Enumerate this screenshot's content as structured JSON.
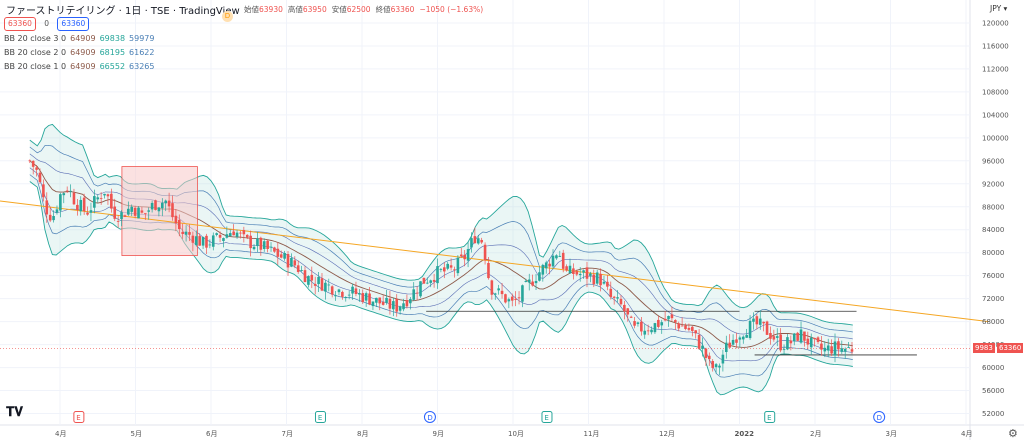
{
  "header": {
    "title": "ファーストリテイリング · 1日 · TSE · TradingView",
    "status_dot": "D",
    "ohlc": [
      {
        "label": "始値",
        "value": "63930"
      },
      {
        "label": "高値",
        "value": "63950"
      },
      {
        "label": "安値",
        "value": "62500"
      },
      {
        "label": "終値",
        "value": "63360"
      },
      {
        "label": "",
        "value": "−1050 (−1.63%)"
      }
    ],
    "buy_price": "63360",
    "spread": "0",
    "sell_price": "63360"
  },
  "indicators": [
    {
      "name": "BB 20 close 3 0",
      "basis": "64909",
      "upper": "69838",
      "lower": "59979"
    },
    {
      "name": "BB 20 close 2 0",
      "basis": "64909",
      "upper": "68195",
      "lower": "61622"
    },
    {
      "name": "BB 20 close 1 0",
      "basis": "64909",
      "upper": "66552",
      "lower": "63265"
    }
  ],
  "currency": "JPY",
  "price_tags": {
    "symbol": "9983",
    "last": "63360"
  },
  "colors": {
    "up": "#26a69a",
    "down": "#ef5350",
    "band3": "#26a69a",
    "band2": "#4a7fb5",
    "band1": "#5b6fb5",
    "basis": "#8d5a4a",
    "trendline": "#f5a623",
    "zone": "#f8c8c8"
  },
  "chart_data": {
    "type": "candlestick",
    "title": "ファーストリテイリング · 1日 · TSE",
    "ylim": [
      50000,
      124000
    ],
    "y_ticks": [
      52000,
      56000,
      60000,
      64000,
      68000,
      72000,
      76000,
      80000,
      84000,
      88000,
      92000,
      96000,
      100000,
      104000,
      108000,
      112000,
      116000,
      120000
    ],
    "x_ticks": [
      "4月",
      "5月",
      "6月",
      "7月",
      "8月",
      "9月",
      "10月",
      "11月",
      "12月",
      "2022",
      "2月",
      "3月",
      "4月"
    ],
    "events": [
      {
        "month_index": 0.25,
        "label": "E",
        "kind": "earnings-red"
      },
      {
        "month_index": 3.45,
        "label": "E",
        "kind": "earnings"
      },
      {
        "month_index": 4.9,
        "label": "D",
        "kind": "dividend"
      },
      {
        "month_index": 6.45,
        "label": "E",
        "kind": "earnings"
      },
      {
        "month_index": 9.4,
        "label": "E",
        "kind": "earnings"
      },
      {
        "month_index": 10.85,
        "label": "D",
        "kind": "dividend"
      }
    ],
    "trendline": [
      [
        0,
        89000
      ],
      [
        12.3,
        68000
      ]
    ],
    "support_lines": [
      {
        "from": 4.85,
        "to": 9.0,
        "price": 69800
      },
      {
        "from": 9.2,
        "to": 10.55,
        "price": 69800
      },
      {
        "from": 9.2,
        "to": 11.35,
        "price": 62200
      }
    ],
    "zone": {
      "x": [
        0.82,
        1.82
      ],
      "y": [
        79500,
        95000
      ]
    },
    "close_path": [
      [
        0,
        96000
      ],
      [
        0.1,
        94000
      ],
      [
        0.2,
        88000
      ],
      [
        0.3,
        86000
      ],
      [
        0.4,
        90000
      ],
      [
        0.5,
        91500
      ],
      [
        0.6,
        89000
      ],
      [
        0.75,
        87000
      ],
      [
        0.9,
        89500
      ],
      [
        1.0,
        91000
      ],
      [
        1.1,
        87000
      ],
      [
        1.2,
        86500
      ],
      [
        1.35,
        88000
      ],
      [
        1.5,
        86500
      ],
      [
        1.65,
        88500
      ],
      [
        1.8,
        89000
      ],
      [
        1.9,
        86000
      ],
      [
        2.0,
        83500
      ],
      [
        2.15,
        83000
      ],
      [
        2.3,
        81500
      ],
      [
        2.5,
        82500
      ],
      [
        2.7,
        84000
      ],
      [
        2.85,
        82000
      ],
      [
        3.0,
        81500
      ],
      [
        3.15,
        80500
      ],
      [
        3.3,
        79500
      ],
      [
        3.5,
        78000
      ],
      [
        3.7,
        75500
      ],
      [
        3.9,
        74500
      ],
      [
        4.1,
        73500
      ],
      [
        4.3,
        73000
      ],
      [
        4.5,
        72000
      ],
      [
        4.7,
        71000
      ],
      [
        4.85,
        70500
      ],
      [
        5.0,
        72000
      ],
      [
        5.2,
        75000
      ],
      [
        5.4,
        76500
      ],
      [
        5.6,
        77000
      ],
      [
        5.75,
        79000
      ],
      [
        5.9,
        83000
      ],
      [
        6.0,
        82000
      ],
      [
        6.1,
        74000
      ],
      [
        6.25,
        72500
      ],
      [
        6.4,
        71000
      ],
      [
        6.55,
        73500
      ],
      [
        6.7,
        76000
      ],
      [
        6.85,
        78000
      ],
      [
        7.0,
        80500
      ],
      [
        7.1,
        76500
      ],
      [
        7.2,
        76500
      ],
      [
        7.4,
        76000
      ],
      [
        7.55,
        75500
      ],
      [
        7.7,
        72000
      ],
      [
        7.85,
        70500
      ],
      [
        8.0,
        66500
      ],
      [
        8.15,
        67000
      ],
      [
        8.3,
        67500
      ],
      [
        8.45,
        68500
      ],
      [
        8.6,
        67500
      ],
      [
        8.75,
        66500
      ],
      [
        8.9,
        63500
      ],
      [
        9.0,
        60500
      ],
      [
        9.1,
        59500
      ],
      [
        9.2,
        63000
      ],
      [
        9.35,
        65500
      ],
      [
        9.5,
        67000
      ],
      [
        9.65,
        67500
      ],
      [
        9.8,
        66000
      ],
      [
        9.95,
        64000
      ],
      [
        10.1,
        64500
      ],
      [
        10.2,
        66000
      ],
      [
        10.35,
        64000
      ],
      [
        10.5,
        63000
      ],
      [
        10.65,
        63500
      ],
      [
        10.8,
        63300
      ],
      [
        10.9,
        63360
      ]
    ]
  }
}
